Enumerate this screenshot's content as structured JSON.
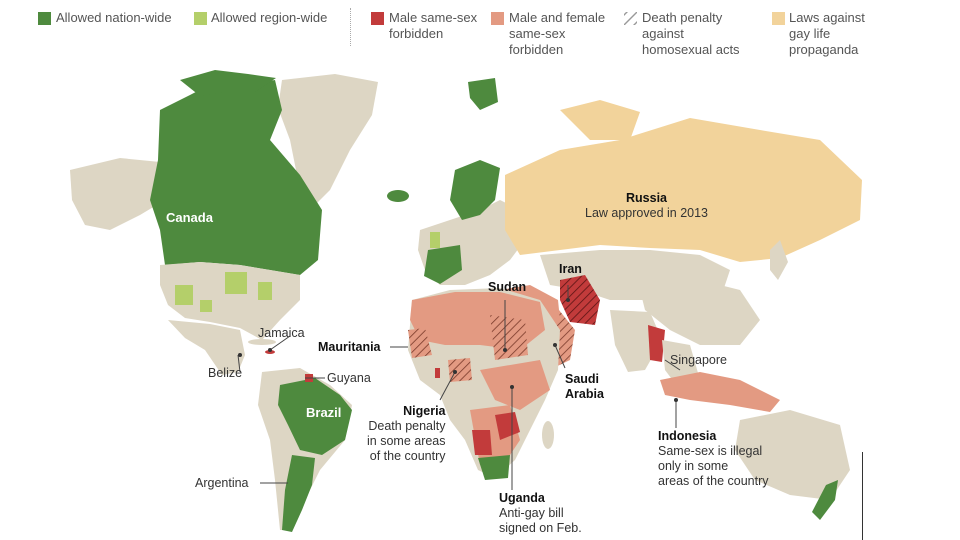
{
  "legend": {
    "items": [
      {
        "label": "Allowed nation-wide",
        "color": "#4e8a3e"
      },
      {
        "label": "Allowed region-wide",
        "color": "#b4cf6a"
      },
      {
        "label": "Male same-sex forbidden",
        "line1": "Male same-sex",
        "line2": "forbidden",
        "color": "#c23b3b"
      },
      {
        "label": "Male and female same-sex forbidden",
        "line1": "Male and female",
        "line2": "same-sex",
        "line3": "forbidden",
        "color": "#e39a82"
      },
      {
        "label": "Death penalty against homosexual acts",
        "line1": "Death penalty",
        "line2": "against",
        "line3": "homosexual acts",
        "color": "#999999"
      },
      {
        "label": "Laws against gay life propaganda",
        "line1": "Laws against",
        "line2": "gay life",
        "line3": "propaganda",
        "color": "#f2d39b"
      }
    ]
  },
  "labels": {
    "canada": "Canada",
    "russia": {
      "name": "Russia",
      "note": "Law approved in 2013"
    },
    "iran": "Iran",
    "sudan": "Sudan",
    "mauritania": "Mauritania",
    "jamaica": "Jamaica",
    "belize": "Belize",
    "guyana": "Guyana",
    "brazil": "Brazil",
    "argentina": "Argentina",
    "singapore": "Singapore",
    "saudi": {
      "line1": "Saudi",
      "line2": "Arabia"
    },
    "nigeria": {
      "name": "Nigeria",
      "line1": "Death penalty",
      "line2": "in some areas",
      "line3": "of the country"
    },
    "indonesia": {
      "name": "Indonesia",
      "line1": "Same-sex is illegal",
      "line2": "only in some",
      "line3": "areas of the country"
    },
    "uganda": {
      "name": "Uganda",
      "line1": "Anti-gay bill",
      "line2": "signed on Feb."
    }
  },
  "colors": {
    "land_other": "#ddd6c4",
    "allowed": "#4e8a3e",
    "region": "#b4cf6a",
    "male": "#c23b3b",
    "both": "#e39a82",
    "propaganda": "#f2d39b"
  }
}
